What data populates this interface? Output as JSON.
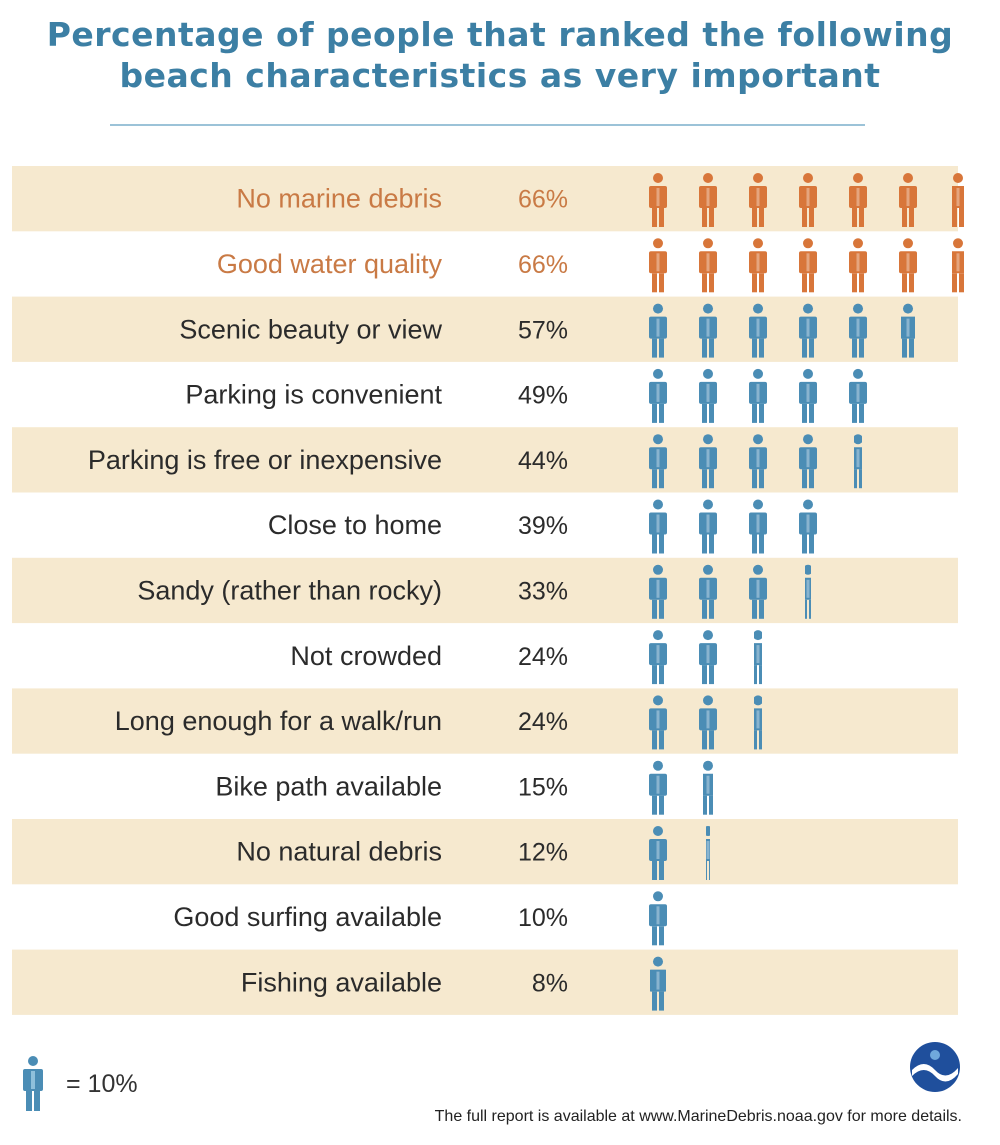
{
  "title": {
    "line1": "Percentage of people that ranked the following",
    "line2": "beach characteristics as very important"
  },
  "colors": {
    "highlight": "#d8763a",
    "normal": "#4b8db5",
    "band": "#f6e9cf",
    "title": "#3c7fa4",
    "highlight_text": "#c97a45",
    "normal_text": "#2b2b2b"
  },
  "chart_data": {
    "type": "pictogram",
    "unit_per_icon": 10,
    "rows": [
      {
        "label": "No marine debris",
        "value": 66,
        "display": "66%",
        "highlight": true
      },
      {
        "label": "Good water quality",
        "value": 66,
        "display": "66%",
        "highlight": true
      },
      {
        "label": "Scenic beauty or view",
        "value": 57,
        "display": "57%",
        "highlight": false
      },
      {
        "label": "Parking is convenient",
        "value": 49,
        "display": "49%",
        "highlight": false
      },
      {
        "label": "Parking is free or inexpensive",
        "value": 44,
        "display": "44%",
        "highlight": false
      },
      {
        "label": "Close to home",
        "value": 39,
        "display": "39%",
        "highlight": false
      },
      {
        "label": "Sandy (rather than rocky)",
        "value": 33,
        "display": "33%",
        "highlight": false
      },
      {
        "label": "Not crowded",
        "value": 24,
        "display": "24%",
        "highlight": false
      },
      {
        "label": "Long enough for a walk/run",
        "value": 24,
        "display": "24%",
        "highlight": false
      },
      {
        "label": "Bike path available",
        "value": 15,
        "display": "15%",
        "highlight": false
      },
      {
        "label": "No natural debris",
        "value": 12,
        "display": "12%",
        "highlight": false
      },
      {
        "label": "Good surfing available",
        "value": 10,
        "display": "10%",
        "highlight": false
      },
      {
        "label": "Fishing available",
        "value": 8,
        "display": "8%",
        "highlight": false
      }
    ]
  },
  "legend": {
    "text": "= 10%",
    "icon": "person-icon"
  },
  "footer": "The full report is available at www.MarineDebris.noaa.gov for more details.",
  "logo": {
    "icon": "noaa-logo-icon"
  }
}
